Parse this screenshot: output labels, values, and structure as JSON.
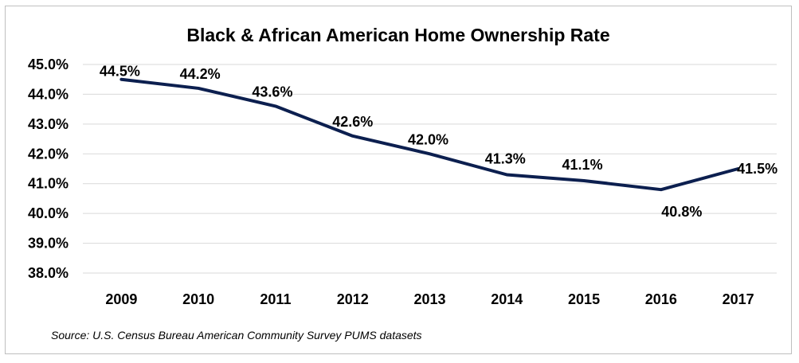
{
  "chart_data": {
    "type": "line",
    "title": "Black & African American Home Ownership Rate",
    "xlabel": "",
    "ylabel": "",
    "categories": [
      "2009",
      "2010",
      "2011",
      "2012",
      "2013",
      "2014",
      "2015",
      "2016",
      "2017"
    ],
    "series": [
      {
        "values": [
          44.5,
          44.2,
          43.6,
          42.6,
          42.0,
          41.3,
          41.1,
          40.8,
          41.5
        ],
        "labels": [
          "44.5%",
          "44.2%",
          "43.6%",
          "42.6%",
          "42.0%",
          "41.3%",
          "41.1%",
          "40.8%",
          "41.5%"
        ],
        "color": "#0c1f4f"
      }
    ],
    "ylim": [
      38.0,
      45.0
    ],
    "yticks": [
      {
        "value": 45.0,
        "label": "45.0%"
      },
      {
        "value": 44.0,
        "label": "44.0%"
      },
      {
        "value": 43.0,
        "label": "43.0%"
      },
      {
        "value": 42.0,
        "label": "42.0%"
      },
      {
        "value": 41.0,
        "label": "41.0%"
      },
      {
        "value": 40.0,
        "label": "40.0%"
      },
      {
        "value": 39.0,
        "label": "39.0%"
      },
      {
        "value": 38.0,
        "label": "38.0%"
      }
    ],
    "grid": true,
    "legend": "none",
    "gridline_color": "#d9d9d9",
    "source": "Source: U.S. Census Bureau American Community Survey PUMS datasets"
  }
}
